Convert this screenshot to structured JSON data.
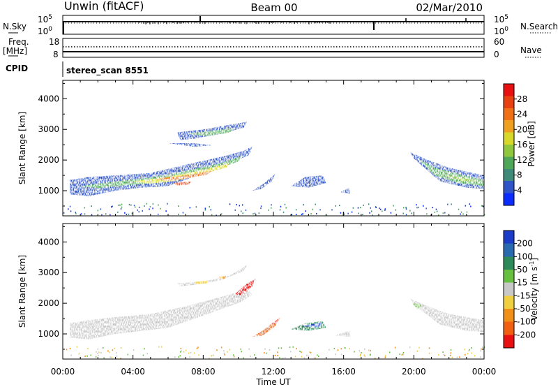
{
  "header": {
    "station": "Unwin (fitACF)",
    "beam": "Beam 00",
    "date": "02/Mar/2010"
  },
  "panel_labels": {
    "nsky": "N.Sky",
    "nsearch": "N.Search",
    "freq": "Freq.",
    "freq_unit": "[MHz]",
    "nave": "Nave",
    "cpid": "CPID",
    "cpid_value": "stereo_scan 8551"
  },
  "noise_ticks": {
    "top": "10^5",
    "bottom": "10^0"
  },
  "freq_ticks": {
    "left": [
      "18",
      "8"
    ],
    "right": [
      "60",
      "0"
    ]
  },
  "chart_data": [
    {
      "type": "heatmap",
      "name": "power",
      "title": "",
      "xlabel": "Time UT",
      "ylabel": "Slant Range [km]",
      "xlim": [
        0,
        24
      ],
      "ylim": [
        180,
        4600
      ],
      "x_ticks": [
        "00:00",
        "04:00",
        "08:00",
        "12:00",
        "16:00",
        "20:00",
        "00:00"
      ],
      "y_ticks": [
        1000,
        2000,
        3000,
        4000
      ],
      "colorbar": {
        "label": "Power [dB]",
        "ticks": [
          "4",
          "8",
          "12",
          "16",
          "20",
          "24",
          "28"
        ],
        "colors": [
          "#0a2cff",
          "#2f55c8",
          "#3f8a78",
          "#4fa85a",
          "#8fc83c",
          "#d8d82a",
          "#f0a020",
          "#f07018",
          "#e84010",
          "#e81010"
        ]
      },
      "echo_regions": [
        {
          "t": [
            0.5,
            5
          ],
          "range": [
            900,
            1500
          ],
          "level": "8-20 dB"
        },
        {
          "t": [
            5,
            11.2
          ],
          "range": [
            1000,
            2600
          ],
          "level": "12-28 dB"
        },
        {
          "t": [
            6.5,
            10.5
          ],
          "range": [
            2600,
            3300
          ],
          "level": "4-12 dB"
        },
        {
          "t": [
            11,
            12.1
          ],
          "range": [
            900,
            1600
          ],
          "level": "4-8 dB"
        },
        {
          "t": [
            13,
            15
          ],
          "range": [
            1100,
            1500
          ],
          "level": "4-8 dB"
        },
        {
          "t": [
            19.8,
            24
          ],
          "range": [
            1000,
            2300
          ],
          "level": "4-20 dB"
        }
      ]
    },
    {
      "type": "heatmap",
      "name": "velocity",
      "title": "",
      "xlabel": "Time UT",
      "ylabel": "Slant Range [km]",
      "xlim": [
        0,
        24
      ],
      "ylim": [
        180,
        4600
      ],
      "x_ticks": [
        "00:00",
        "04:00",
        "08:00",
        "12:00",
        "16:00",
        "20:00",
        "00:00"
      ],
      "y_ticks": [
        1000,
        2000,
        3000,
        4000
      ],
      "colorbar": {
        "label": "Velocity [m s^-1]",
        "ticks": [
          "200",
          "100",
          "50",
          "15",
          "-15",
          "-50",
          "-100",
          "-200"
        ],
        "colors": [
          "#1a3cc8",
          "#2a6ab0",
          "#2e8a5a",
          "#68c040",
          "#c8c8c8",
          "#f0d040",
          "#f09018",
          "#f06010",
          "#e81010"
        ]
      },
      "echo_regions": [
        {
          "t": [
            0.5,
            11
          ],
          "range": [
            900,
            2500
          ],
          "level": "ground scatter (grey)"
        },
        {
          "t": [
            6.5,
            10.5
          ],
          "range": [
            2500,
            3300
          ],
          "level": "-15 to -100 m/s"
        },
        {
          "t": [
            9.8,
            11.2
          ],
          "range": [
            2200,
            2800
          ],
          "level": "-100 to -200 m/s"
        },
        {
          "t": [
            11,
            12.4
          ],
          "range": [
            900,
            1600
          ],
          "level": "-50 to -200 m/s"
        },
        {
          "t": [
            13,
            15
          ],
          "range": [
            1100,
            1500
          ],
          "level": "50 to 200 m/s"
        },
        {
          "t": [
            19.8,
            24
          ],
          "range": [
            1000,
            2200
          ],
          "level": "ground scatter (grey)"
        }
      ]
    }
  ]
}
